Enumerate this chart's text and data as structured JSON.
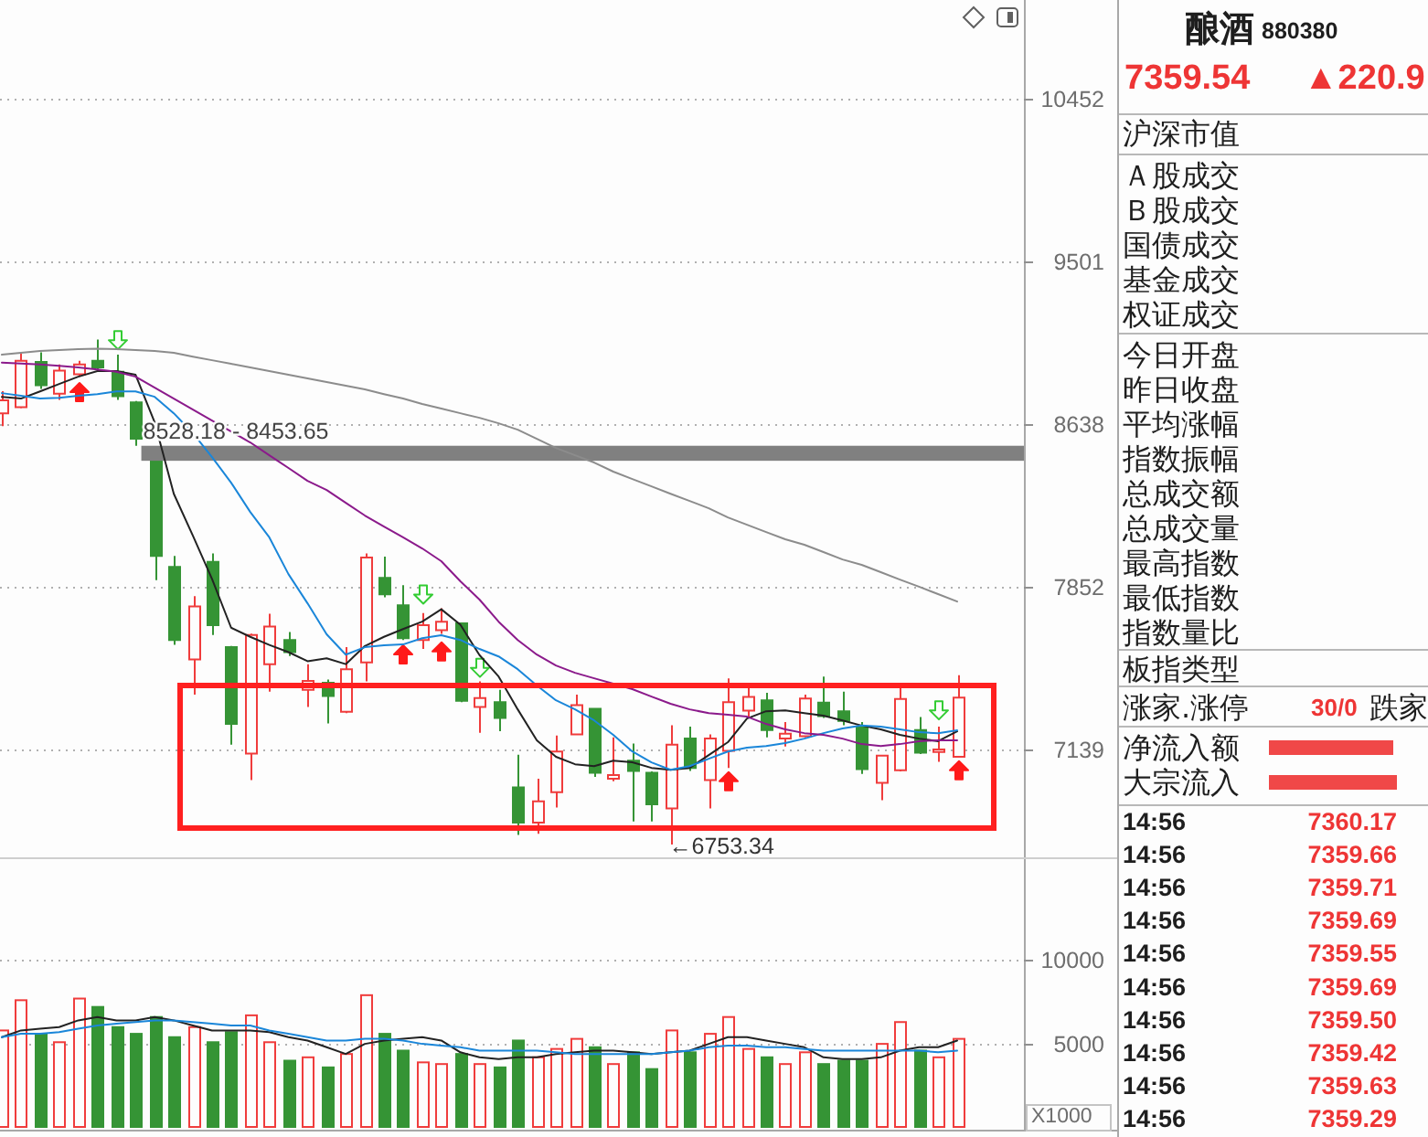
{
  "chart_data": [
    {
      "type": "candlestick",
      "categories": [
        null,
        null,
        null,
        null,
        null,
        null,
        null,
        null,
        null,
        null,
        null,
        null,
        null,
        null,
        null,
        null,
        null,
        null,
        null,
        null,
        null,
        null,
        null,
        null,
        null,
        null,
        null,
        null,
        null,
        null,
        null,
        null,
        null,
        null,
        null,
        null,
        null,
        null,
        null,
        null,
        null,
        null,
        null,
        null,
        null,
        null,
        null,
        null,
        null,
        null,
        null
      ],
      "ohlc": [
        [
          8692,
          8805,
          8627,
          8758
        ],
        [
          8723,
          9002,
          8717,
          8963
        ],
        [
          8957,
          9007,
          8817,
          8836
        ],
        [
          8792,
          8944,
          8760,
          8912
        ],
        [
          8893,
          8963,
          8880,
          8944
        ],
        [
          8963,
          9075,
          8906,
          8928
        ],
        [
          8906,
          8995,
          8760,
          8779
        ],
        [
          8748,
          8755,
          8528.18,
          8563
        ],
        [
          8450,
          8453.65,
          7883,
          7996
        ],
        [
          7945,
          7996,
          7590,
          7612
        ],
        [
          7526,
          7810,
          7372,
          7763
        ],
        [
          7968,
          8007,
          7634,
          7678
        ],
        [
          7580,
          7585,
          7160,
          7247
        ],
        [
          7122,
          7640,
          7013,
          7634
        ],
        [
          7505,
          7730,
          7385,
          7672
        ],
        [
          7612,
          7647,
          7541,
          7558
        ],
        [
          7393,
          7505,
          7319,
          7432
        ],
        [
          7424,
          7438,
          7249,
          7366
        ],
        [
          7299,
          7580,
          7293,
          7483
        ],
        [
          7513,
          8007,
          7430,
          7988
        ],
        [
          7894,
          7993,
          7804,
          7818
        ],
        [
          7768,
          7860,
          7612,
          7620
        ],
        [
          7612,
          7733,
          7572,
          7678
        ],
        [
          7656,
          7755,
          7639,
          7694
        ],
        [
          7686,
          7690,
          7340,
          7346
        ],
        [
          7319,
          7430,
          7210,
          7358
        ],
        [
          7340,
          7393,
          7216,
          7272
        ],
        [
          6983,
          7118,
          6791,
          6840
        ],
        [
          6840,
          7018,
          6796,
          6926
        ],
        [
          6963,
          7198,
          6901,
          7131
        ],
        [
          7203,
          7372,
          7200,
          7327
        ],
        [
          7311,
          7315,
          7026,
          7043
        ],
        [
          7018,
          7190,
          7008,
          7033
        ],
        [
          7093,
          7164,
          6845,
          7050
        ],
        [
          7043,
          7048,
          6845,
          6914
        ],
        [
          6897,
          7241,
          6753.34,
          7160
        ],
        [
          7185,
          7236,
          7050,
          7063
        ],
        [
          7013,
          7203,
          6897,
          7185
        ],
        [
          7134,
          7443,
          7063,
          7340
        ],
        [
          7304,
          7412,
          7272,
          7362
        ],
        [
          7348,
          7380,
          7190,
          7221
        ],
        [
          7185,
          7255,
          7152,
          7206
        ],
        [
          7195,
          7372,
          7190,
          7356
        ],
        [
          7338,
          7451,
          7272,
          7280
        ],
        [
          7301,
          7385,
          7241,
          7260
        ],
        [
          7236,
          7255,
          7038,
          7058
        ],
        [
          7001,
          7118,
          6931,
          7114
        ],
        [
          7053,
          7412,
          7048,
          7354
        ],
        [
          7221,
          7276,
          7120,
          7126
        ],
        [
          7129,
          7236,
          7088,
          7140
        ],
        [
          7109,
          7457,
          7105,
          7360
        ]
      ],
      "colors": [
        "#f03c3c",
        "#f03c3c",
        "#359435",
        "#f03c3c",
        "#f03c3c",
        "#359435",
        "#359435",
        "#359435",
        "#359435",
        "#359435",
        "#f03c3c",
        "#359435",
        "#359435",
        "#f03c3c",
        "#f03c3c",
        "#359435",
        "#f03c3c",
        "#359435",
        "#f03c3c",
        "#f03c3c",
        "#359435",
        "#359435",
        "#f03c3c",
        "#f03c3c",
        "#359435",
        "#f03c3c",
        "#359435",
        "#359435",
        "#f03c3c",
        "#f03c3c",
        "#f03c3c",
        "#359435",
        "#f03c3c",
        "#359435",
        "#359435",
        "#f03c3c",
        "#359435",
        "#f03c3c",
        "#f03c3c",
        "#f03c3c",
        "#359435",
        "#f03c3c",
        "#f03c3c",
        "#359435",
        "#359435",
        "#359435",
        "#f03c3c",
        "#f03c3c",
        "#359435",
        "#f03c3c",
        "#f03c3c"
      ],
      "series": [
        {
          "type": "line",
          "color": "#222222",
          "values": [
            8776,
            8767,
            8804,
            8842,
            8880,
            8909,
            8909,
            8890,
            8646,
            8292,
            8091,
            7889,
            7667,
            7626,
            7590,
            7558,
            7518,
            7531,
            7505,
            7585,
            7626,
            7661,
            7694,
            7750,
            7680,
            7545,
            7451,
            7309,
            7178,
            7109,
            7078,
            7070,
            7093,
            7086,
            7063,
            7055,
            7063,
            7116,
            7170,
            7270,
            7301,
            7305,
            7293,
            7282,
            7262,
            7240,
            7224,
            7201,
            7185,
            7174,
            7216
          ]
        },
        {
          "type": "line",
          "color": "#1a86d9",
          "values": [
            8795,
            8781,
            8767,
            8771,
            8781,
            8790,
            8804,
            8804,
            8776,
            8692,
            8591,
            8472,
            8346,
            8204,
            8083,
            7911,
            7777,
            7637,
            7547,
            7580,
            7588,
            7592,
            7620,
            7633,
            7612,
            7572,
            7539,
            7483,
            7412,
            7348,
            7309,
            7262,
            7201,
            7131,
            7086,
            7055,
            7070,
            7101,
            7131,
            7147,
            7154,
            7166,
            7185,
            7208,
            7228,
            7240,
            7236,
            7224,
            7212,
            7208,
            7220
          ]
        },
        {
          "type": "line",
          "color": "#8b1a8b",
          "values": [
            8953,
            8949,
            8944,
            8937,
            8928,
            8918,
            8906,
            8880,
            8823,
            8767,
            8711,
            8655,
            8600,
            8545,
            8481,
            8418,
            8355,
            8310,
            8248,
            8187,
            8134,
            8083,
            8031,
            7971,
            7878,
            7794,
            7694,
            7612,
            7547,
            7499,
            7467,
            7443,
            7420,
            7396,
            7364,
            7333,
            7309,
            7293,
            7286,
            7278,
            7247,
            7224,
            7208,
            7201,
            7185,
            7162,
            7154,
            7162,
            7174,
            7178,
            7178
          ]
        },
        {
          "type": "line",
          "color": "#8c8c8c",
          "values": [
            8995,
            9005,
            9014,
            9019,
            9024,
            9027,
            9024,
            9019,
            9014,
            9005,
            8985,
            8966,
            8947,
            8928,
            8909,
            8890,
            8871,
            8852,
            8833,
            8814,
            8790,
            8767,
            8739,
            8716,
            8692,
            8669,
            8641,
            8609,
            8563,
            8517,
            8481,
            8445,
            8400,
            8364,
            8328,
            8292,
            8257,
            8222,
            8178,
            8143,
            8108,
            8074,
            8048,
            8014,
            7979,
            7954,
            7920,
            7886,
            7853,
            7819,
            7785
          ]
        },
        {
          "type": "scatter",
          "color": "#ff1a1a",
          "values": [
            null,
            null,
            null,
            null,
            8800,
            null,
            null,
            null,
            null,
            null,
            null,
            null,
            null,
            null,
            null,
            null,
            null,
            null,
            null,
            null,
            null,
            7548,
            null,
            7561,
            null,
            null,
            null,
            null,
            null,
            null,
            null,
            null,
            null,
            null,
            null,
            null,
            null,
            null,
            7008,
            null,
            null,
            null,
            null,
            null,
            null,
            null,
            null,
            null,
            null,
            null,
            7053
          ]
        },
        {
          "type": "scatter",
          "color": "#33cc33",
          "values": [
            null,
            null,
            null,
            null,
            null,
            null,
            9072,
            null,
            null,
            null,
            null,
            null,
            null,
            null,
            null,
            null,
            null,
            null,
            null,
            null,
            null,
            null,
            7817,
            null,
            null,
            7489,
            null,
            null,
            null,
            null,
            null,
            null,
            null,
            null,
            null,
            null,
            null,
            null,
            null,
            null,
            null,
            null,
            null,
            null,
            null,
            null,
            null,
            null,
            null,
            7305,
            null
          ]
        }
      ],
      "ylim": [
        6710,
        11070
      ],
      "yticks": [
        7139,
        7852,
        8638,
        9501,
        10452
      ],
      "log": true,
      "grid": "y",
      "tick_labels": "y",
      "bands": [
        {
          "axis": "y",
          "from": 8453.65,
          "to": 8528.18,
          "label": "8528.18 - 8453.65",
          "color": "#808080"
        }
      ],
      "annotations": [
        "←6753.34"
      ]
    },
    {
      "type": "bar",
      "categories": [
        null,
        null,
        null,
        null,
        null,
        null,
        null,
        null,
        null,
        null,
        null,
        null,
        null,
        null,
        null,
        null,
        null,
        null,
        null,
        null,
        null,
        null,
        null,
        null,
        null,
        null,
        null,
        null,
        null,
        null,
        null,
        null,
        null,
        null,
        null,
        null,
        null,
        null,
        null,
        null,
        null,
        null,
        null,
        null,
        null,
        null,
        null,
        null,
        null,
        null,
        null
      ],
      "series": [
        {
          "type": "bar",
          "values": [
            5800,
            7600,
            5600,
            5100,
            7700,
            7200,
            6000,
            5600,
            6600,
            5400,
            6000,
            5100,
            5700,
            6700,
            5100,
            4000,
            4200,
            3600,
            4400,
            7900,
            5600,
            4600,
            3900,
            3800,
            4400,
            3800,
            3600,
            5200,
            4200,
            4700,
            5300,
            4800,
            3800,
            4500,
            3500,
            5800,
            4500,
            5600,
            6600,
            4700,
            4200,
            3800,
            4500,
            3800,
            4000,
            4000,
            5000,
            6300,
            4600,
            4200,
            5300
          ],
          "colors": [
            "#f03c3c",
            "#f03c3c",
            "#359435",
            "#f03c3c",
            "#f03c3c",
            "#359435",
            "#359435",
            "#359435",
            "#359435",
            "#359435",
            "#f03c3c",
            "#359435",
            "#359435",
            "#f03c3c",
            "#f03c3c",
            "#359435",
            "#f03c3c",
            "#359435",
            "#f03c3c",
            "#f03c3c",
            "#359435",
            "#359435",
            "#f03c3c",
            "#f03c3c",
            "#359435",
            "#f03c3c",
            "#359435",
            "#359435",
            "#f03c3c",
            "#f03c3c",
            "#f03c3c",
            "#359435",
            "#f03c3c",
            "#359435",
            "#359435",
            "#f03c3c",
            "#359435",
            "#f03c3c",
            "#f03c3c",
            "#f03c3c",
            "#359435",
            "#f03c3c",
            "#f03c3c",
            "#359435",
            "#359435",
            "#359435",
            "#f03c3c",
            "#f03c3c",
            "#359435",
            "#f03c3c",
            "#f03c3c"
          ]
        },
        {
          "type": "line",
          "color": "#222222",
          "values": [
            5400,
            5800,
            5900,
            6000,
            6400,
            6600,
            6400,
            6400,
            6600,
            6400,
            6100,
            5800,
            5800,
            5800,
            5700,
            5400,
            5200,
            4800,
            4400,
            5000,
            5200,
            5300,
            5400,
            5200,
            4500,
            4200,
            4100,
            4200,
            4200,
            4400,
            4500,
            4600,
            4600,
            4500,
            4400,
            4500,
            4600,
            5000,
            5400,
            5400,
            5200,
            5000,
            4800,
            4200,
            4100,
            4100,
            4200,
            4600,
            4800,
            4800,
            5200
          ]
        },
        {
          "type": "line",
          "color": "#1a86d9",
          "values": [
            5400,
            5600,
            5600,
            5700,
            5900,
            6100,
            6200,
            6300,
            6400,
            6400,
            6300,
            6200,
            6100,
            6100,
            5800,
            5600,
            5400,
            5200,
            5200,
            5300,
            5300,
            5200,
            5000,
            4900,
            4800,
            4600,
            4600,
            4600,
            4600,
            4500,
            4400,
            4400,
            4400,
            4400,
            4400,
            4500,
            4600,
            4800,
            4900,
            4900,
            4800,
            4800,
            4700,
            4600,
            4600,
            4600,
            4600,
            4600,
            4600,
            4500,
            4600
          ]
        }
      ],
      "ylim": [
        0,
        16000
      ],
      "yticks": [
        5000,
        10000
      ],
      "grid": "y",
      "tick_labels": "y",
      "ylabel": "X1000"
    },
    {
      "type": "other",
      "title": "酿酒",
      "subtitle": "880380",
      "annotations": [
        "7359.54",
        "▲220.9",
        "沪深市值",
        "Ａ股成交",
        "Ｂ股成交",
        "国债成交",
        "基金成交",
        "权证成交",
        "今日开盘",
        "昨日收盘",
        "平均涨幅",
        "指数振幅",
        "总成交额",
        "总成交量",
        "最高指数",
        "最低指数",
        "指数量比",
        "板指类型",
        "涨家.涨停",
        "30/0",
        "跌家",
        "净流入额",
        "大宗流入"
      ],
      "categories": [
        "14:56",
        "14:56",
        "14:56",
        "14:56",
        "14:56",
        "14:56",
        "14:56",
        "14:56",
        "14:56",
        "14:56"
      ],
      "values": [
        7360.17,
        7359.66,
        7359.71,
        7359.69,
        7359.55,
        7359.69,
        7359.5,
        7359.42,
        7359.63,
        7359.29
      ],
      "value_labels": [
        "7360.17",
        "7359.66",
        "7359.71",
        "7359.69",
        "7359.55",
        "7359.69",
        "7359.50",
        "7359.42",
        "7359.63",
        "7359.29"
      ]
    }
  ]
}
